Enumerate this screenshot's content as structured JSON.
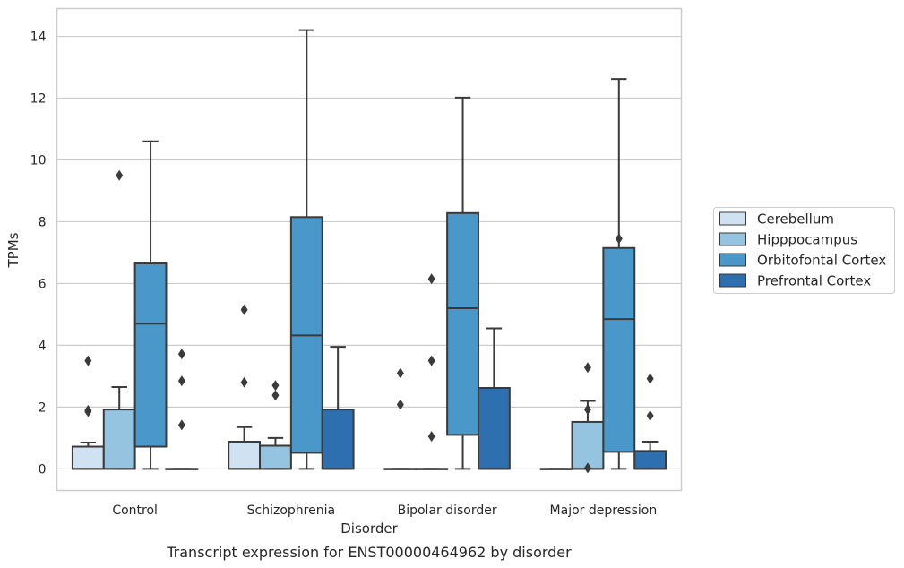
{
  "chart_data": {
    "type": "box",
    "title": "",
    "caption": "Transcript expression for ENST00000464962 by disorder",
    "xlabel": "Disorder",
    "ylabel": "TPMs",
    "ylim": [
      -0.7,
      14.9
    ],
    "yticks": [
      0,
      2,
      4,
      6,
      8,
      10,
      12,
      14
    ],
    "grid": "horizontal",
    "legend_placement": "right",
    "categories": [
      "Control",
      "Schizophrenia",
      "Bipolar disorder",
      "Major depression"
    ],
    "series": [
      {
        "name": "Cerebellum",
        "color": "#d0e1f2",
        "boxes": [
          {
            "whislo": 0,
            "q1": 0,
            "med": 0,
            "q3": 0.72,
            "whishi": 0.85,
            "fliers": [
              1.85,
              1.9,
              3.5
            ]
          },
          {
            "whislo": 0,
            "q1": 0,
            "med": 0,
            "q3": 0.88,
            "whishi": 1.35,
            "fliers": [
              2.8,
              5.15
            ]
          },
          {
            "whislo": 0,
            "q1": 0,
            "med": 0,
            "q3": 0,
            "whishi": 0,
            "fliers": [
              2.08,
              3.1
            ]
          },
          {
            "whislo": 0,
            "q1": 0,
            "med": 0,
            "q3": 0,
            "whishi": 0,
            "fliers": []
          }
        ]
      },
      {
        "name": "Hipppocampus",
        "color": "#94c4df",
        "boxes": [
          {
            "whislo": 0,
            "q1": 0,
            "med": 0,
            "q3": 1.92,
            "whishi": 2.65,
            "fliers": [
              9.5
            ]
          },
          {
            "whislo": 0,
            "q1": 0,
            "med": 0,
            "q3": 0.75,
            "whishi": 1.0,
            "fliers": [
              2.38,
              2.7
            ]
          },
          {
            "whislo": 0,
            "q1": 0,
            "med": 0,
            "q3": 0,
            "whishi": 0,
            "fliers": [
              1.05,
              3.5,
              6.15
            ]
          },
          {
            "whislo": 0,
            "q1": 0,
            "med": 0,
            "q3": 1.52,
            "whishi": 2.2,
            "fliers": [
              0.03,
              1.92,
              3.28
            ]
          }
        ]
      },
      {
        "name": "Orbitofontal Cortex",
        "color": "#4a98c9",
        "boxes": [
          {
            "whislo": 0,
            "q1": 0.72,
            "med": 4.7,
            "q3": 6.65,
            "whishi": 10.6,
            "fliers": []
          },
          {
            "whislo": 0,
            "q1": 0.52,
            "med": 4.32,
            "q3": 8.15,
            "whishi": 14.2,
            "fliers": []
          },
          {
            "whislo": 0,
            "q1": 1.1,
            "med": 5.2,
            "q3": 8.28,
            "whishi": 12.02,
            "fliers": []
          },
          {
            "whislo": 0,
            "q1": 0.55,
            "med": 4.85,
            "q3": 7.15,
            "whishi": 12.62,
            "fliers": [
              7.45
            ]
          }
        ]
      },
      {
        "name": "Prefrontal Cortex",
        "color": "#2e6faf",
        "boxes": [
          {
            "whislo": 0,
            "q1": 0,
            "med": 0,
            "q3": 0,
            "whishi": 0,
            "fliers": [
              1.42,
              2.85,
              3.72
            ]
          },
          {
            "whislo": 0,
            "q1": 0,
            "med": 0,
            "q3": 1.92,
            "whishi": 3.95,
            "fliers": []
          },
          {
            "whislo": 0,
            "q1": 0,
            "med": 0,
            "q3": 2.62,
            "whishi": 4.55,
            "fliers": []
          },
          {
            "whislo": 0,
            "q1": 0,
            "med": 0,
            "q3": 0.58,
            "whishi": 0.88,
            "fliers": [
              1.72,
              2.92
            ]
          }
        ]
      }
    ]
  }
}
